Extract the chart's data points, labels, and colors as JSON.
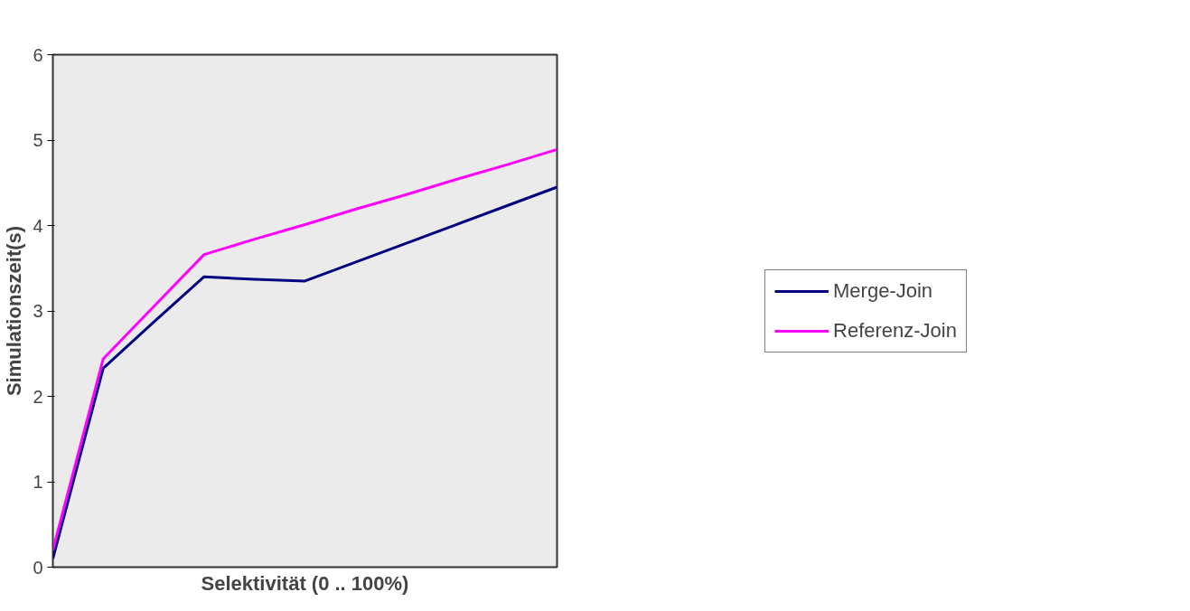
{
  "chart_data": {
    "type": "line",
    "xlabel": "Selektivität (0 .. 100%)",
    "ylabel": "Simulationszeit(s)",
    "categories": [
      null,
      null,
      null,
      null,
      null,
      null,
      null,
      null,
      null,
      null,
      null
    ],
    "ylim": [
      0,
      6
    ],
    "yticks": [
      0,
      1,
      2,
      3,
      4,
      5,
      6
    ],
    "grid": false,
    "legend": "right",
    "series": [
      {
        "name": "Merge-Join",
        "color": "#000080",
        "values": [
          0.1,
          2.33,
          2.87,
          3.4,
          3.37,
          3.35,
          3.57,
          3.79,
          4.01,
          4.23,
          4.45
        ]
      },
      {
        "name": "Referenz-Join",
        "color": "#ff00ff",
        "values": [
          0.2,
          2.44,
          3.05,
          3.66,
          3.84,
          4.01,
          4.19,
          4.36,
          4.54,
          4.71,
          4.89
        ]
      }
    ]
  }
}
